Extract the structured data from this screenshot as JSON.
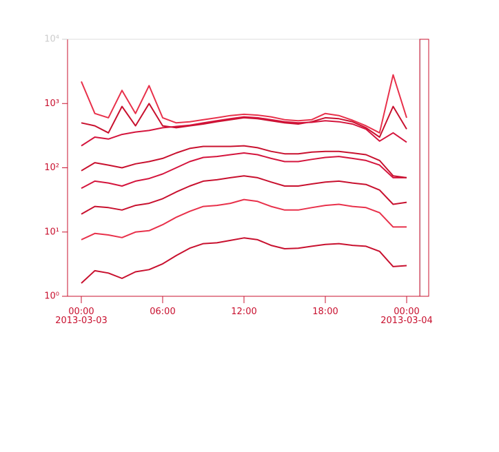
{
  "chart_data": {
    "type": "line",
    "log_scale": true,
    "x": [
      "2013-03-03 00:00",
      "2013-03-03 01:00",
      "2013-03-03 02:00",
      "2013-03-03 03:00",
      "2013-03-03 04:00",
      "2013-03-03 05:00",
      "2013-03-03 06:00",
      "2013-03-03 07:00",
      "2013-03-03 08:00",
      "2013-03-03 09:00",
      "2013-03-03 10:00",
      "2013-03-03 11:00",
      "2013-03-03 12:00",
      "2013-03-03 13:00",
      "2013-03-03 14:00",
      "2013-03-03 15:00",
      "2013-03-03 16:00",
      "2013-03-03 17:00",
      "2013-03-03 18:00",
      "2013-03-03 19:00",
      "2013-03-03 20:00",
      "2013-03-03 21:00",
      "2013-03-03 22:00",
      "2013-03-03 23:00",
      "2013-03-04 00:00"
    ],
    "xlim": [
      "2013-03-02 23:00",
      "2013-03-04 01:00"
    ],
    "xticks": [
      {
        "value": "2013-03-03 00:00",
        "label": "00:00\n2013-03-03"
      },
      {
        "value": "2013-03-03 06:00",
        "label": "06:00"
      },
      {
        "value": "2013-03-03 12:00",
        "label": "12:00"
      },
      {
        "value": "2013-03-03 18:00",
        "label": "18:00"
      },
      {
        "value": "2013-03-04 00:00",
        "label": "00:00\n2013-03-04"
      }
    ],
    "ylim": [
      1,
      10000
    ],
    "yticks": [
      {
        "value": 1,
        "label": "10⁰"
      },
      {
        "value": 10,
        "label": "10¹"
      },
      {
        "value": 100,
        "label": "10²"
      },
      {
        "value": 1000,
        "label": "10³"
      },
      {
        "value": 10000,
        "label": "10⁴"
      }
    ],
    "series": [
      {
        "color": "#c8102e",
        "values": [
          1.6,
          2.5,
          2.3,
          1.9,
          2.4,
          2.6,
          3.2,
          4.3,
          5.6,
          6.6,
          6.8,
          7.4,
          8.1,
          7.6,
          6.2,
          5.5,
          5.6,
          6.0,
          6.4,
          6.6,
          6.2,
          6.0,
          5.0,
          2.9,
          3.0
        ]
      },
      {
        "color": "#e8304a",
        "values": [
          7.6,
          9.5,
          9.0,
          8.2,
          10,
          10.5,
          13,
          17,
          21,
          25,
          26,
          28,
          32,
          30,
          25,
          22,
          22,
          24,
          26,
          27,
          25,
          24,
          20,
          12,
          12
        ]
      },
      {
        "color": "#c8102e",
        "values": [
          19,
          25,
          24,
          22,
          26,
          28,
          33,
          42,
          52,
          62,
          65,
          70,
          75,
          70,
          60,
          52,
          52,
          56,
          60,
          62,
          58,
          55,
          45,
          27,
          29
        ]
      },
      {
        "color": "#d4143c",
        "values": [
          48,
          62,
          58,
          52,
          62,
          68,
          80,
          100,
          125,
          145,
          150,
          160,
          170,
          160,
          140,
          125,
          125,
          135,
          145,
          150,
          140,
          130,
          110,
          70,
          70
        ]
      },
      {
        "color": "#c8102e",
        "values": [
          90,
          120,
          110,
          100,
          115,
          125,
          140,
          170,
          200,
          215,
          215,
          215,
          220,
          205,
          180,
          165,
          165,
          175,
          180,
          180,
          170,
          160,
          130,
          75,
          70
        ]
      },
      {
        "color": "#e8304a",
        "values": [
          2200,
          700,
          600,
          1600,
          700,
          1900,
          600,
          500,
          520,
          560,
          600,
          650,
          680,
          660,
          620,
          560,
          540,
          560,
          700,
          650,
          550,
          450,
          350,
          2800,
          600
        ]
      },
      {
        "color": "#c8102e",
        "values": [
          500,
          450,
          350,
          900,
          450,
          1000,
          450,
          420,
          450,
          480,
          520,
          560,
          600,
          580,
          540,
          500,
          480,
          520,
          600,
          580,
          520,
          420,
          300,
          900,
          400
        ]
      },
      {
        "color": "#d4143c",
        "values": [
          220,
          300,
          280,
          330,
          360,
          380,
          420,
          440,
          460,
          500,
          540,
          580,
          620,
          600,
          560,
          520,
          500,
          510,
          540,
          520,
          480,
          400,
          260,
          350,
          250
        ]
      }
    ]
  }
}
